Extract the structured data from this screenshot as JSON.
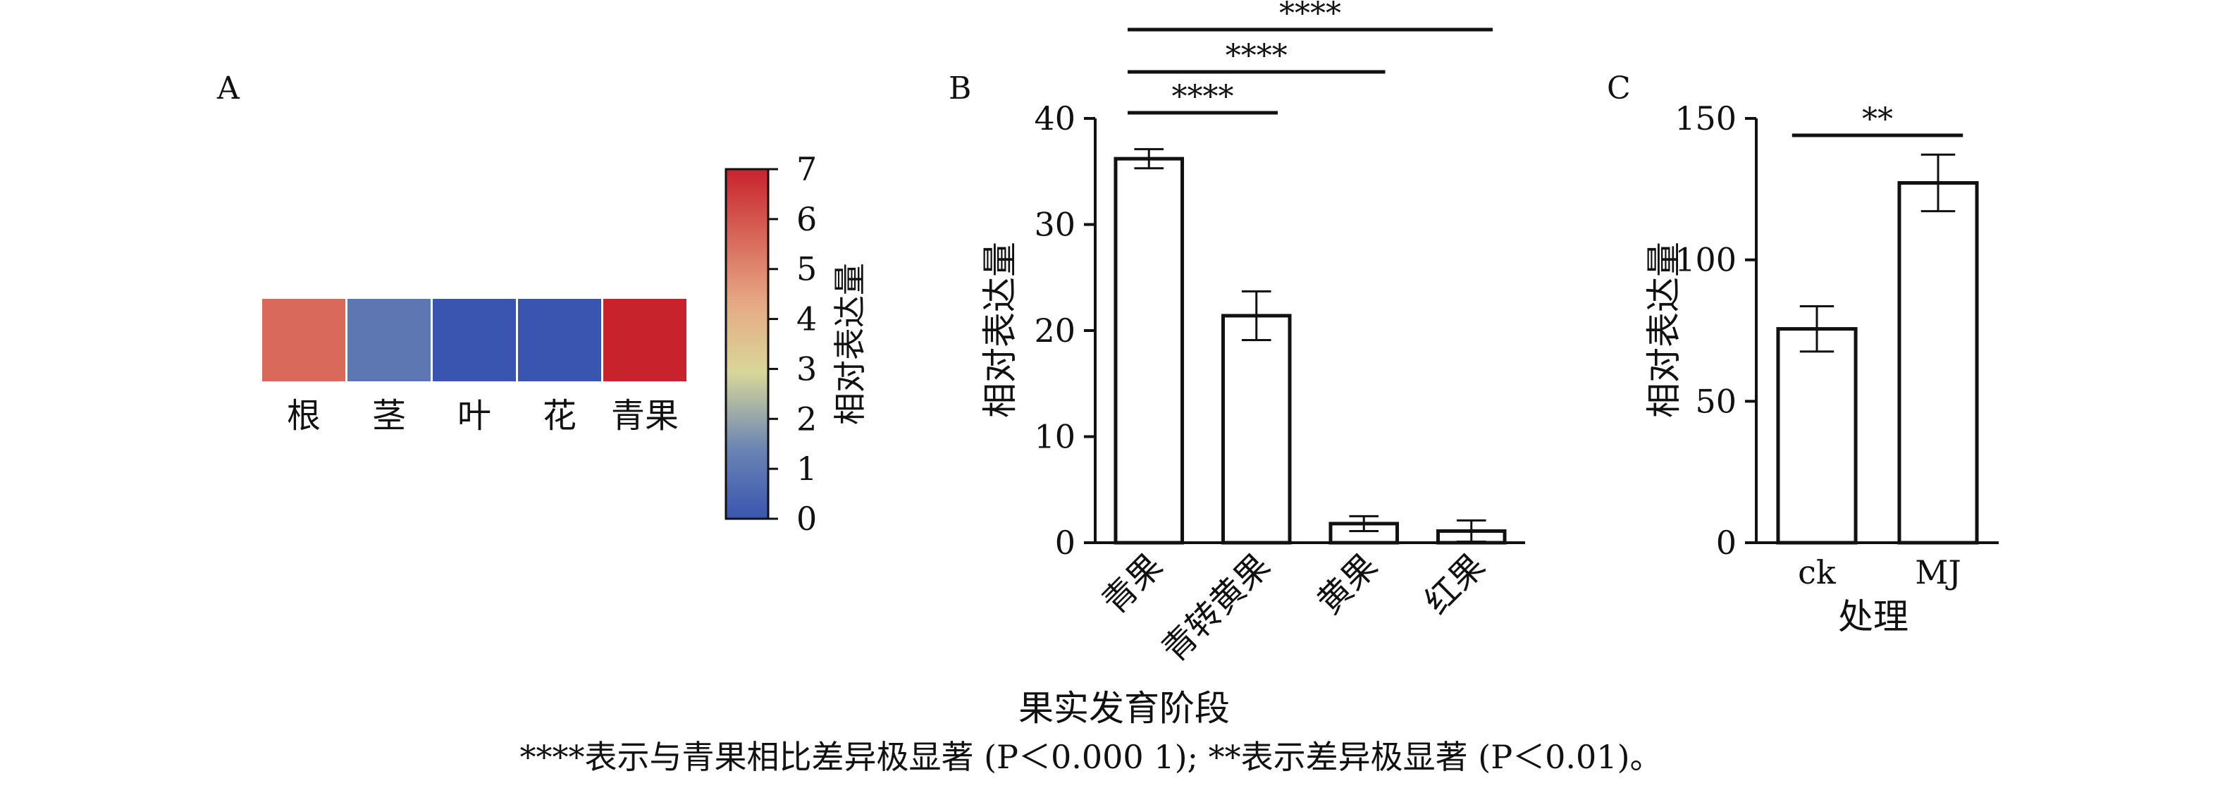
{
  "caption": "****表示与青果相比差异极显著 (P＜0.000 1); **表示差异极显著 (P＜0.01)。",
  "colors": {
    "axis": "#111111",
    "bar_fill": "#ffffff",
    "bar_stroke": "#111111",
    "heat_low": "#3a55b0",
    "heat_mid": "#e8dc8c",
    "heat_high": "#c8232d"
  },
  "chart_data": [
    {
      "type": "heatmap",
      "panel_label": "A",
      "categories": [
        "根",
        "茎",
        "叶",
        "花",
        "青果"
      ],
      "values": [
        5.6,
        1.0,
        0.0,
        0.0,
        7.0
      ],
      "colorbar": {
        "label": "相对表达量",
        "ticks": [
          "0",
          "1",
          "2",
          "3",
          "4",
          "5",
          "6",
          "7"
        ],
        "range": [
          0,
          7
        ]
      }
    },
    {
      "type": "bar",
      "panel_label": "B",
      "categories": [
        "青果",
        "青转黄果",
        "黄果",
        "红果"
      ],
      "values": [
        36.2,
        21.4,
        1.8,
        1.1
      ],
      "errors": [
        0.9,
        2.3,
        0.7,
        1.0
      ],
      "ylabel": "相对表达量",
      "xlabel": "果实发育阶段",
      "ylim": [
        0,
        40
      ],
      "yticks": [
        "0",
        "10",
        "20",
        "30",
        "40"
      ],
      "significance": [
        {
          "from": 0,
          "to": 1,
          "label": "****"
        },
        {
          "from": 0,
          "to": 2,
          "label": "****"
        },
        {
          "from": 0,
          "to": 3,
          "label": "****"
        }
      ]
    },
    {
      "type": "bar",
      "panel_label": "C",
      "categories": [
        "ck",
        "MJ"
      ],
      "values": [
        75.6,
        127.2
      ],
      "errors": [
        8.0,
        10.0
      ],
      "ylabel": "相对表达量",
      "xlabel": "处理",
      "ylim": [
        0,
        150
      ],
      "yticks": [
        "0",
        "50",
        "100",
        "150"
      ],
      "significance": [
        {
          "from": 0,
          "to": 1,
          "label": "**"
        }
      ]
    }
  ]
}
